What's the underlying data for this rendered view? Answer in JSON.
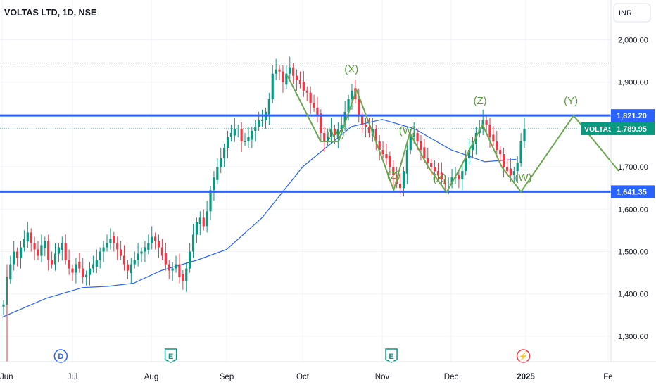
{
  "header": {
    "title": "VOLTAS LTD, 1D, NSE"
  },
  "currency_button": "INR",
  "colors": {
    "up": "#089981",
    "down": "#f23645",
    "ma": "#2962ff",
    "hline": "#2962ff",
    "wave": "#6aa84f",
    "wave_label": "#5b9e3f",
    "event_dividend": "#2962ff",
    "event_earnings": "#089981",
    "event_split": "#f23645"
  },
  "chart_data": {
    "type": "candlestick",
    "title": "VOLTAS LTD, 1D, NSE",
    "y_axis": {
      "ticks": [
        "2,000.00",
        "1,900.00",
        "1,800.00",
        "1,700.00",
        "1,600.00",
        "1,500.00",
        "1,400.00",
        "1,300.00"
      ],
      "tick_values": [
        2000,
        1900,
        1800,
        1700,
        1600,
        1500,
        1400,
        1300
      ],
      "range": [
        1225,
        2065
      ]
    },
    "x_axis": {
      "ticks": [
        "Jun",
        "Jul",
        "Aug",
        "Sep",
        "Oct",
        "Nov",
        "Dec",
        "2025",
        "Fe"
      ],
      "tick_dates": [
        "2024-06-01",
        "2024-07-01",
        "2024-08-01",
        "2024-09-01",
        "2024-10-01",
        "2024-11-01",
        "2024-12-01",
        "2025-01-01",
        "2025-02-01"
      ]
    },
    "closes": [
      1375,
      1440,
      1470,
      1500,
      1485,
      1510,
      1530,
      1545,
      1520,
      1505,
      1490,
      1515,
      1525,
      1480,
      1470,
      1495,
      1510,
      1520,
      1480,
      1460,
      1450,
      1470,
      1460,
      1440,
      1445,
      1460,
      1470,
      1480,
      1500,
      1510,
      1520,
      1530,
      1520,
      1505,
      1490,
      1470,
      1455,
      1470,
      1480,
      1495,
      1500,
      1510,
      1520,
      1535,
      1525,
      1510,
      1490,
      1470,
      1455,
      1460,
      1470,
      1440,
      1430,
      1460,
      1500,
      1540,
      1570,
      1580,
      1560,
      1595,
      1645,
      1675,
      1700,
      1720,
      1745,
      1770,
      1780,
      1790,
      1790,
      1760,
      1760,
      1770,
      1785,
      1795,
      1810,
      1810,
      1830,
      1860,
      1920,
      1930,
      1925,
      1900,
      1920,
      1935,
      1915,
      1905,
      1895,
      1880,
      1875,
      1850,
      1840,
      1820,
      1780,
      1760,
      1770,
      1790,
      1775,
      1790,
      1800,
      1830,
      1860,
      1880,
      1860,
      1820,
      1800,
      1795,
      1780,
      1790,
      1760,
      1740,
      1730,
      1720,
      1700,
      1680,
      1660,
      1650,
      1690,
      1740,
      1770,
      1780,
      1760,
      1740,
      1720,
      1710,
      1700,
      1690,
      1680,
      1670,
      1660,
      1660,
      1675,
      1675,
      1670,
      1690,
      1720,
      1740,
      1760,
      1780,
      1790,
      1810,
      1800,
      1770,
      1760,
      1740,
      1730,
      1700,
      1690,
      1680,
      1690,
      1710,
      1760,
      1790
    ],
    "ma_line": [
      {
        "date": "2024-06-01",
        "value": 1345
      },
      {
        "date": "2024-06-20",
        "value": 1390
      },
      {
        "date": "2024-07-05",
        "value": 1415
      },
      {
        "date": "2024-07-15",
        "value": 1418
      },
      {
        "date": "2024-07-25",
        "value": 1425
      },
      {
        "date": "2024-08-05",
        "value": 1455
      },
      {
        "date": "2024-08-20",
        "value": 1480
      },
      {
        "date": "2024-09-01",
        "value": 1505
      },
      {
        "date": "2024-09-15",
        "value": 1580
      },
      {
        "date": "2024-10-01",
        "value": 1700
      },
      {
        "date": "2024-10-20",
        "value": 1795
      },
      {
        "date": "2024-11-01",
        "value": 1812
      },
      {
        "date": "2024-11-15",
        "value": 1790
      },
      {
        "date": "2024-12-01",
        "value": 1740
      },
      {
        "date": "2024-12-15",
        "value": 1712
      },
      {
        "date": "2024-12-28",
        "value": 1718
      }
    ],
    "hlines": [
      {
        "value": 1821.2,
        "label": "1,821.20"
      },
      {
        "value": 1641.35,
        "label": "1,641.35"
      }
    ],
    "last_price": {
      "symbol": "VOLTAS",
      "value": 1789.95,
      "label": "1,789.95"
    },
    "wave_path": [
      {
        "date": "2024-09-25",
        "value": 1915
      },
      {
        "date": "2024-10-08",
        "value": 1760
      },
      {
        "date": "2024-10-15",
        "value": 1760
      },
      {
        "date": "2024-10-22",
        "value": 1882
      },
      {
        "date": "2024-11-01",
        "value": 1720
      },
      {
        "date": "2024-11-06",
        "value": 1645
      },
      {
        "date": "2024-11-13",
        "value": 1780
      },
      {
        "date": "2024-11-21",
        "value": 1700
      },
      {
        "date": "2024-11-29",
        "value": 1640
      },
      {
        "date": "2024-12-05",
        "value": 1700
      },
      {
        "date": "2024-12-14",
        "value": 1800
      },
      {
        "date": "2024-12-22",
        "value": 1700
      },
      {
        "date": "2024-12-30",
        "value": 1641
      },
      {
        "date": "2025-01-19",
        "value": 1821
      },
      {
        "date": "2025-02-05",
        "value": 1690
      }
    ],
    "wave_labels": [
      {
        "text": "(X)",
        "date": "2024-10-20",
        "value": 1923
      },
      {
        "text": "(W)",
        "date": "2024-10-14",
        "value": 1770
      },
      {
        "text": "(Z)",
        "date": "2024-11-06",
        "value": 1672
      },
      {
        "text": "(W)",
        "date": "2024-11-12",
        "value": 1777
      },
      {
        "text": "(X)",
        "date": "2024-11-26",
        "value": 1665
      },
      {
        "text": "(Z)",
        "date": "2024-12-13",
        "value": 1848
      },
      {
        "text": "(W)",
        "date": "2024-12-31",
        "value": 1667
      },
      {
        "text": "(Y)",
        "date": "2025-01-18",
        "value": 1848
      }
    ],
    "events": [
      {
        "type": "dividend",
        "letter": "D",
        "date": "2024-06-26"
      },
      {
        "type": "earnings",
        "letter": "E",
        "date": "2024-08-09"
      },
      {
        "type": "earnings",
        "letter": "E",
        "date": "2024-11-05"
      },
      {
        "type": "split",
        "letter": "⚡",
        "date": "2024-12-31"
      }
    ],
    "grid": true,
    "scale": "linear",
    "legend_position": "top-left"
  }
}
